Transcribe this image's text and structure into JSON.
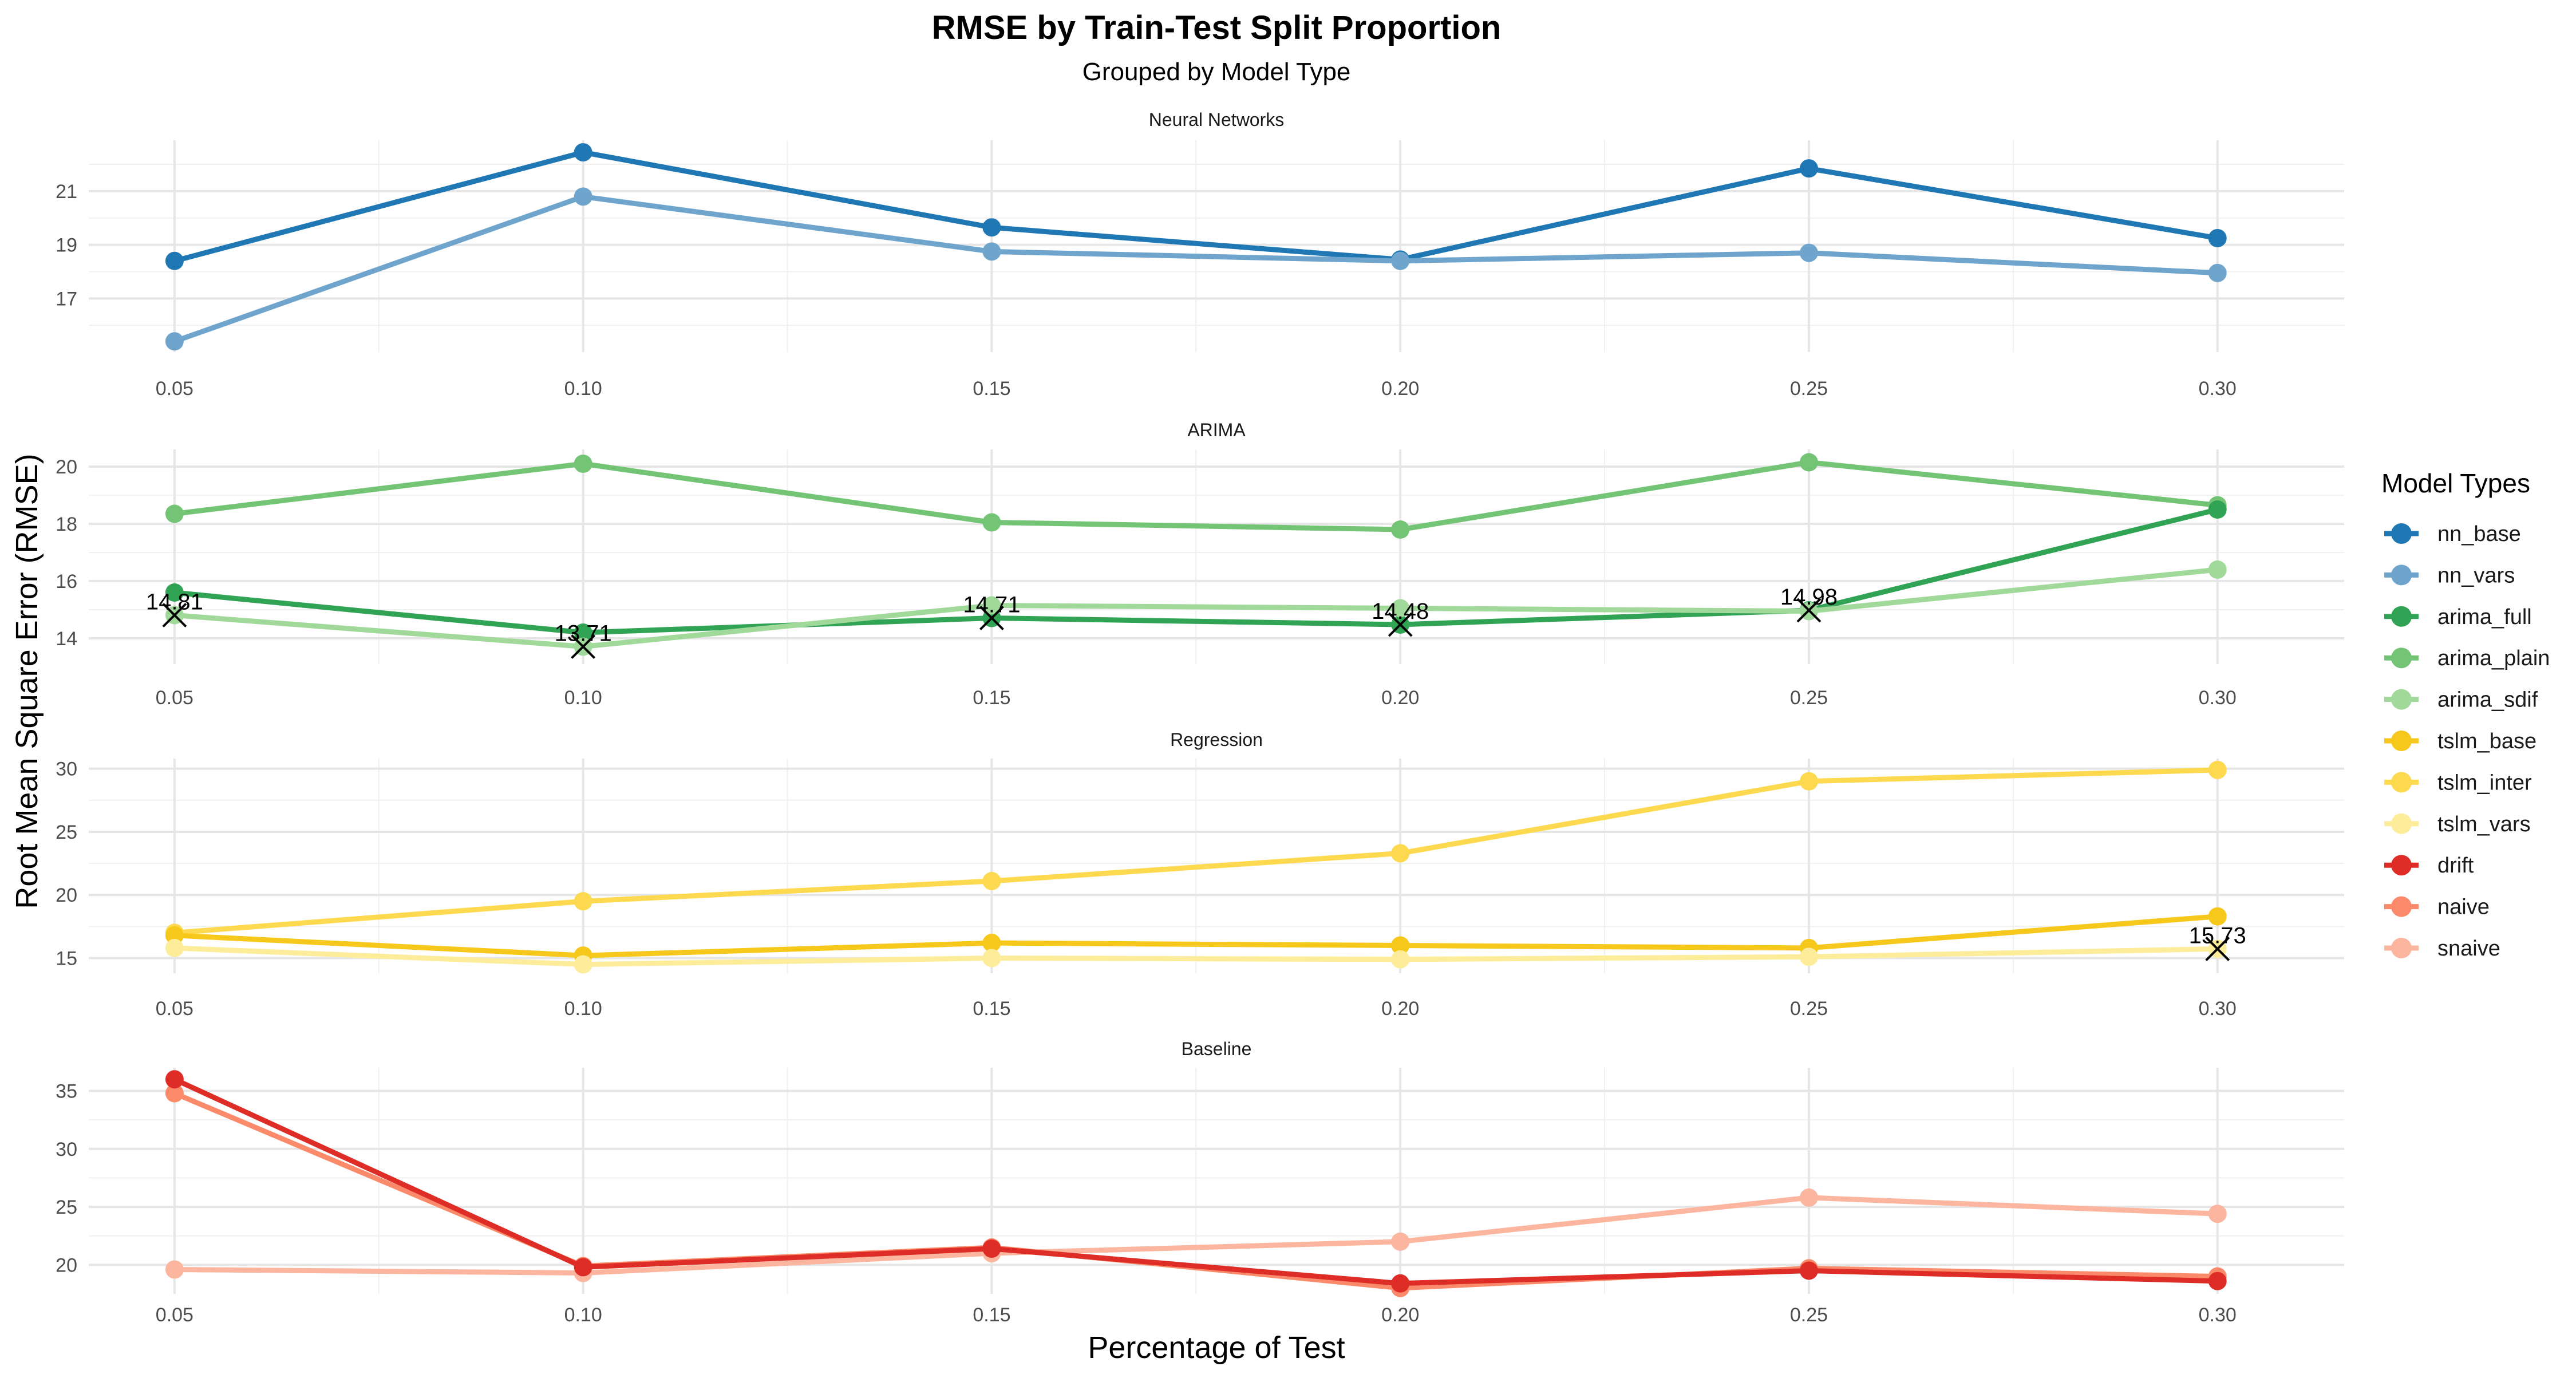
{
  "chart_data": {
    "type": "line",
    "title": "RMSE by Train-Test Split Proportion",
    "subtitle": "Grouped by Model Type",
    "xlabel": "Percentage of Test",
    "ylabel": "Root Mean Square Error (RMSE)",
    "x": [
      0.05,
      0.1,
      0.15,
      0.2,
      0.25,
      0.3
    ],
    "x_tick_labels": [
      "0.05",
      "0.10",
      "0.15",
      "0.20",
      "0.25",
      "0.30"
    ],
    "legend": {
      "title": "Model Types",
      "position": "right",
      "items": [
        {
          "name": "nn_base",
          "color": "#1F78B4"
        },
        {
          "name": "nn_vars",
          "color": "#6FA5CD"
        },
        {
          "name": "arima_full",
          "color": "#31A354"
        },
        {
          "name": "arima_plain",
          "color": "#74C476"
        },
        {
          "name": "arima_sdif",
          "color": "#A1D99B"
        },
        {
          "name": "tslm_base",
          "color": "#F7C81C"
        },
        {
          "name": "tslm_inter",
          "color": "#FDD94F"
        },
        {
          "name": "tslm_vars",
          "color": "#FDEC9A"
        },
        {
          "name": "drift",
          "color": "#DE2D26"
        },
        {
          "name": "naive",
          "color": "#FB8A6A"
        },
        {
          "name": "snaive",
          "color": "#FCB59E"
        }
      ]
    },
    "panels": [
      {
        "title": "Neural Networks",
        "ylim": [
          15.0,
          22.9
        ],
        "y_ticks": [
          17,
          19,
          21
        ],
        "series": [
          {
            "name": "nn_base",
            "color": "#1F78B4",
            "values": [
              18.4,
              22.45,
              19.65,
              18.45,
              21.85,
              19.25
            ]
          },
          {
            "name": "nn_vars",
            "color": "#6FA5CD",
            "values": [
              15.4,
              20.8,
              18.75,
              18.4,
              18.7,
              17.95
            ]
          }
        ],
        "min_markers": []
      },
      {
        "title": "ARIMA",
        "ylim": [
          13.1,
          20.6
        ],
        "y_ticks": [
          14,
          16,
          18,
          20
        ],
        "series": [
          {
            "name": "arima_plain",
            "color": "#74C476",
            "values": [
              18.35,
              20.1,
              18.05,
              17.8,
              20.15,
              18.65
            ]
          },
          {
            "name": "arima_full",
            "color": "#31A354",
            "values": [
              15.6,
              14.2,
              14.71,
              14.48,
              14.98,
              18.5
            ]
          },
          {
            "name": "arima_sdif",
            "color": "#A1D99B",
            "values": [
              14.81,
              13.71,
              15.15,
              15.05,
              14.95,
              16.4
            ]
          }
        ],
        "min_markers": [
          {
            "x": 0.05,
            "y": 14.81,
            "label": "14.81"
          },
          {
            "x": 0.1,
            "y": 13.71,
            "label": "13.71"
          },
          {
            "x": 0.15,
            "y": 14.71,
            "label": "14.71"
          },
          {
            "x": 0.2,
            "y": 14.48,
            "label": "14.48"
          },
          {
            "x": 0.25,
            "y": 14.98,
            "label": "14.98"
          }
        ]
      },
      {
        "title": "Regression",
        "ylim": [
          13.8,
          30.8
        ],
        "y_ticks": [
          15,
          20,
          25,
          30
        ],
        "series": [
          {
            "name": "tslm_inter",
            "color": "#FDD94F",
            "values": [
              17.0,
              19.5,
              21.1,
              23.3,
              29.0,
              29.9
            ]
          },
          {
            "name": "tslm_base",
            "color": "#F7C81C",
            "values": [
              16.8,
              15.2,
              16.2,
              16.0,
              15.8,
              18.3
            ]
          },
          {
            "name": "tslm_vars",
            "color": "#FDEC9A",
            "values": [
              15.8,
              14.5,
              15.0,
              14.9,
              15.1,
              15.73
            ]
          }
        ],
        "min_markers": [
          {
            "x": 0.3,
            "y": 15.73,
            "label": "15.73"
          }
        ]
      },
      {
        "title": "Baseline",
        "ylim": [
          17.5,
          37.0
        ],
        "y_ticks": [
          20,
          25,
          30,
          35
        ],
        "series": [
          {
            "name": "snaive",
            "color": "#FCB59E",
            "values": [
              19.6,
              19.3,
              21.0,
              22.0,
              25.8,
              24.4
            ]
          },
          {
            "name": "naive",
            "color": "#FB8A6A",
            "values": [
              34.8,
              19.9,
              21.5,
              18.0,
              19.7,
              19.0
            ]
          },
          {
            "name": "drift",
            "color": "#DE2D26",
            "values": [
              36.0,
              19.8,
              21.4,
              18.4,
              19.5,
              18.6
            ]
          }
        ],
        "min_markers": []
      }
    ]
  }
}
